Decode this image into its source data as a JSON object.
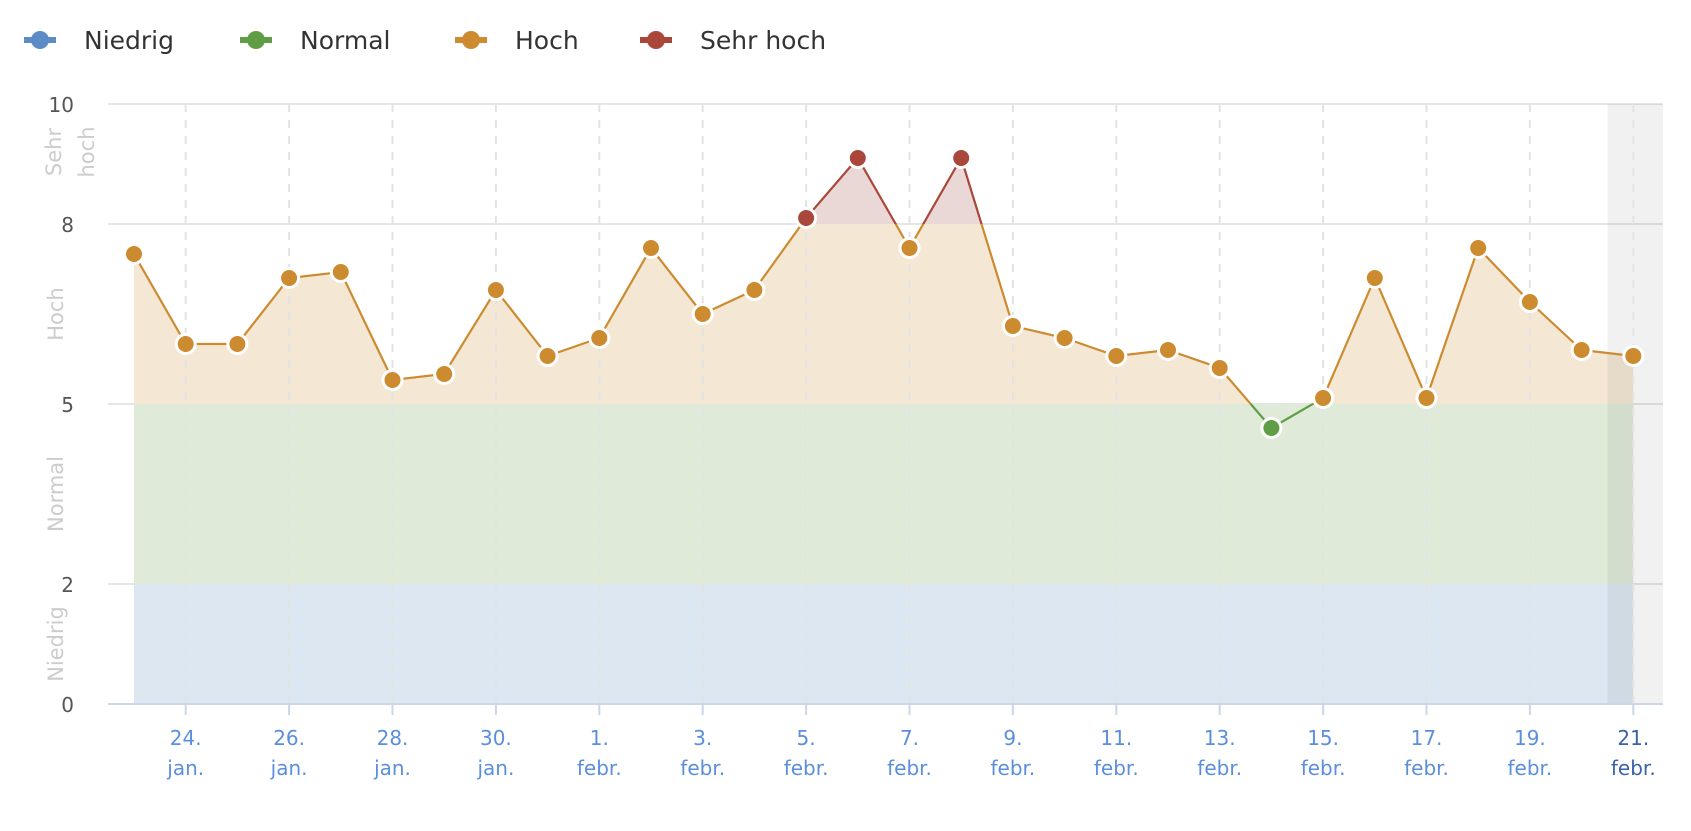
{
  "legend": {
    "items": [
      {
        "label": "Niedrig",
        "color": "#5b8cc6",
        "x": 24
      },
      {
        "label": "Normal",
        "color": "#5f9e45",
        "x": 240
      },
      {
        "label": "Hoch",
        "color": "#cd8b30",
        "x": 455
      },
      {
        "label": "Sehr hoch",
        "color": "#a8473a",
        "x": 640
      }
    ]
  },
  "y_axis": {
    "ticks": [
      "0",
      "2",
      "5",
      "8",
      "10"
    ],
    "band_labels": [
      "Niedrig",
      "Normal",
      "Hoch",
      "Sehr hoch"
    ]
  },
  "x_axis": {
    "ticks": [
      {
        "day": "24.",
        "month": "jan."
      },
      {
        "day": "26.",
        "month": "jan."
      },
      {
        "day": "28.",
        "month": "jan."
      },
      {
        "day": "30.",
        "month": "jan."
      },
      {
        "day": "1.",
        "month": "febr."
      },
      {
        "day": "3.",
        "month": "febr."
      },
      {
        "day": "5.",
        "month": "febr."
      },
      {
        "day": "7.",
        "month": "febr."
      },
      {
        "day": "9.",
        "month": "febr."
      },
      {
        "day": "11.",
        "month": "febr."
      },
      {
        "day": "13.",
        "month": "febr."
      },
      {
        "day": "15.",
        "month": "febr."
      },
      {
        "day": "17.",
        "month": "febr."
      },
      {
        "day": "19.",
        "month": "febr."
      },
      {
        "day": "21.",
        "month": "febr."
      }
    ]
  },
  "colors": {
    "niedrig": "#5b8cc6",
    "normal": "#5f9e45",
    "hoch": "#cd8b30",
    "sehr_hoch": "#a8473a",
    "band_niedrig": "#dce7f1",
    "band_normal": "#e0ead9",
    "band_hoch": "#f4e7d4",
    "band_sehr_hoch": "#ead8d7",
    "axis_label": "#5b8fdb",
    "axis_label_current": "#3a62a8"
  },
  "chart_data": {
    "type": "area",
    "title": "",
    "xlabel": "",
    "ylabel": "",
    "ylim": [
      0,
      10
    ],
    "grid": true,
    "legend_position": "top-left",
    "legend": [
      "Niedrig",
      "Normal",
      "Hoch",
      "Sehr hoch"
    ],
    "zones": [
      {
        "name": "Niedrig",
        "from": 0,
        "to": 2
      },
      {
        "name": "Normal",
        "from": 2,
        "to": 5
      },
      {
        "name": "Hoch",
        "from": 5,
        "to": 8
      },
      {
        "name": "Sehr hoch",
        "from": 8,
        "to": 10
      }
    ],
    "x": [
      "23. jan.",
      "24. jan.",
      "25. jan.",
      "26. jan.",
      "27. jan.",
      "28. jan.",
      "29. jan.",
      "30. jan.",
      "31. jan.",
      "1. febr.",
      "2. febr.",
      "3. febr.",
      "4. febr.",
      "5. febr.",
      "6. febr.",
      "7. febr.",
      "8. febr.",
      "9. febr.",
      "10. febr.",
      "11. febr.",
      "12. febr.",
      "13. febr.",
      "14. febr.",
      "15. febr.",
      "16. febr.",
      "17. febr.",
      "18. febr.",
      "19. febr.",
      "20. febr.",
      "21. febr."
    ],
    "values": [
      7.5,
      6.0,
      6.0,
      7.1,
      7.2,
      5.4,
      5.5,
      6.9,
      5.8,
      6.1,
      7.6,
      6.5,
      6.9,
      8.1,
      9.1,
      7.6,
      9.1,
      6.3,
      6.1,
      5.8,
      5.9,
      5.6,
      4.6,
      5.1,
      7.1,
      5.1,
      7.6,
      6.7,
      5.9,
      5.8
    ],
    "highlighted_category": "21. febr."
  }
}
